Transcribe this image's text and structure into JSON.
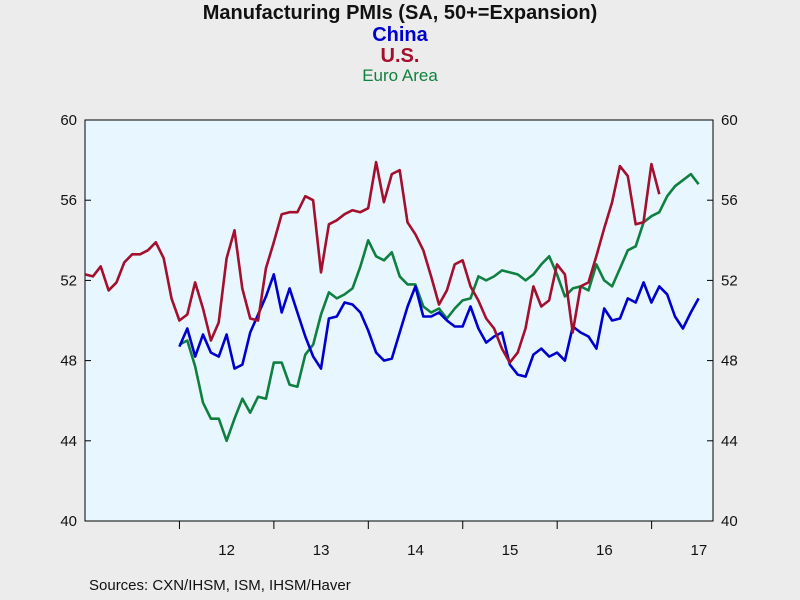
{
  "chart_data": {
    "type": "line",
    "title": "Manufacturing PMIs (SA, 50+=Expansion)",
    "ylim": [
      40,
      60
    ],
    "y_ticks": [
      40,
      44,
      48,
      52,
      56,
      60
    ],
    "x_ticks": [
      {
        "label": "12",
        "x": 2012.5
      },
      {
        "label": "13",
        "x": 2013.5
      },
      {
        "label": "14",
        "x": 2014.5
      },
      {
        "label": "15",
        "x": 2015.5
      },
      {
        "label": "16",
        "x": 2016.5
      },
      {
        "label": "17",
        "x": 2017.5
      }
    ],
    "x_year_boundaries": [
      2012,
      2013,
      2014,
      2015,
      2016,
      2017
    ],
    "xlim": [
      2011.0,
      2017.65
    ],
    "grid": false,
    "dual_y_axis": true,
    "series": [
      {
        "name": "China",
        "color": "#0000cc",
        "start": 2012.0,
        "step": 0.0833,
        "values": [
          48.7,
          49.6,
          48.2,
          49.3,
          48.4,
          48.2,
          49.3,
          47.6,
          47.8,
          49.4,
          50.3,
          51.2,
          52.3,
          50.4,
          51.6,
          50.4,
          49.2,
          48.2,
          47.6,
          50.1,
          50.2,
          50.9,
          50.8,
          50.4,
          49.5,
          48.4,
          48.0,
          48.1,
          49.4,
          50.7,
          51.7,
          50.2,
          50.2,
          50.4,
          50.0,
          49.7,
          49.7,
          50.7,
          49.6,
          48.9,
          49.2,
          49.4,
          47.8,
          47.3,
          47.2,
          48.3,
          48.6,
          48.2,
          48.4,
          48.0,
          49.7,
          49.4,
          49.2,
          48.6,
          50.6,
          50.0,
          50.1,
          51.1,
          50.9,
          51.9,
          50.9,
          51.7,
          51.3,
          50.2,
          49.6,
          50.4,
          51.1
        ]
      },
      {
        "name": "U.S.",
        "color": "#a30f2d",
        "start": 2011.0,
        "step": 0.0833,
        "values": [
          52.3,
          52.2,
          52.7,
          51.5,
          51.9,
          52.9,
          53.3,
          53.3,
          53.5,
          53.9,
          53.1,
          51.1,
          50.0,
          50.3,
          51.9,
          50.6,
          49.0,
          49.9,
          53.1,
          54.5,
          51.6,
          50.1,
          50.0,
          52.6,
          53.9,
          55.3,
          55.4,
          55.4,
          56.2,
          56.0,
          52.4,
          54.8,
          55.0,
          55.3,
          55.5,
          55.4,
          55.6,
          57.9,
          55.9,
          57.3,
          57.5,
          54.9,
          54.3,
          53.5,
          52.2,
          50.8,
          51.5,
          52.8,
          53.0,
          51.7,
          51.0,
          50.1,
          49.6,
          48.6,
          47.9,
          48.4,
          49.6,
          51.7,
          50.7,
          51.0,
          52.8,
          52.3,
          49.4,
          51.7,
          51.9,
          53.2,
          54.6,
          55.9,
          57.7,
          57.2,
          54.8,
          54.9,
          57.8,
          56.3
        ]
      },
      {
        "name": "Euro Area",
        "color": "#108040",
        "start": 2012.0,
        "step": 0.0833,
        "values": [
          48.8,
          49.0,
          47.7,
          45.9,
          45.1,
          45.1,
          44.0,
          45.1,
          46.1,
          45.4,
          46.2,
          46.1,
          47.9,
          47.9,
          46.8,
          46.7,
          48.3,
          48.8,
          50.3,
          51.4,
          51.1,
          51.3,
          51.6,
          52.7,
          54.0,
          53.2,
          53.0,
          53.4,
          52.2,
          51.8,
          51.8,
          50.7,
          50.4,
          50.6,
          50.1,
          50.6,
          51.0,
          51.1,
          52.2,
          52.0,
          52.2,
          52.5,
          52.4,
          52.3,
          52.0,
          52.3,
          52.8,
          53.2,
          52.3,
          51.2,
          51.6,
          51.7,
          51.5,
          52.8,
          52.0,
          51.7,
          52.6,
          53.5,
          53.7,
          54.9,
          55.2,
          55.4,
          56.2,
          56.7,
          57.0,
          57.3,
          56.8
        ]
      }
    ]
  },
  "legend": {
    "china": "China",
    "us": "U.S.",
    "euro": "Euro Area"
  },
  "source_text": "Sources:  CXN/IHSM, ISM, IHSM/Haver"
}
